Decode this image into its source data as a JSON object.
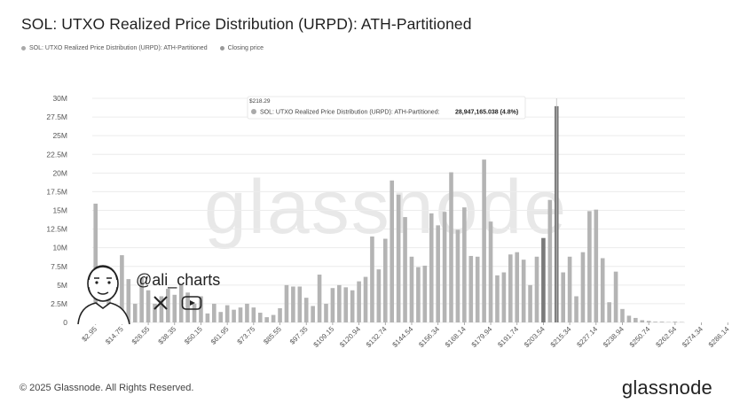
{
  "header": {
    "title": "SOL: UTXO Realized Price Distribution (URPD): ATH-Partitioned"
  },
  "legend": [
    {
      "label": "SOL: UTXO Realized Price Distribution (URPD): ATH-Partitioned",
      "color": "#a9a9a9"
    },
    {
      "label": "Closing price",
      "color": "#9a9a9a"
    }
  ],
  "tooltip": {
    "price": "$218.29",
    "text": "SOL: UTXO Realized Price Distribution (URPD): ATH-Partitioned:",
    "value": "28,947,165.038 (4.8%)"
  },
  "watermark": "glassnode",
  "handle": "@ali_charts",
  "footer": {
    "copyright": "© 2025 Glassnode. All Rights Reserved.",
    "logo": "glassnode"
  },
  "colors": {
    "bar": "#b4b4b4",
    "bar_highlight": "#7a7a7a",
    "grid": "#ececec"
  },
  "chart_data": {
    "type": "bar",
    "title": "SOL: UTXO Realized Price Distribution (URPD): ATH-Partitioned",
    "ylim": [
      0,
      30000000
    ],
    "yticks": [
      0,
      2500000,
      5000000,
      7500000,
      10000000,
      12500000,
      15000000,
      17500000,
      20000000,
      22500000,
      25000000,
      27500000,
      30000000
    ],
    "ytick_labels": [
      "0",
      "2.5M",
      "5M",
      "7.5M",
      "10M",
      "12.5M",
      "15M",
      "17.5M",
      "20M",
      "22.5M",
      "25M",
      "27.5M",
      "30M"
    ],
    "xtick_labels": [
      "$2.95",
      "$14.75",
      "$26.55",
      "$38.35",
      "$50.15",
      "$61.95",
      "$73.75",
      "$85.55",
      "$97.35",
      "$109.15",
      "$120.94",
      "$132.74",
      "$144.54",
      "$156.34",
      "$168.14",
      "$179.94",
      "$191.74",
      "$203.54",
      "$215.34",
      "$227.14",
      "$238.94",
      "$250.74",
      "$262.54",
      "$274.34",
      "$286.14"
    ],
    "bin_start": 2.95,
    "bin_width": 2.95,
    "values": [
      15900000,
      2000000,
      3300000,
      1600000,
      9000000,
      5800000,
      2500000,
      6000000,
      4300000,
      2500000,
      3500000,
      4500000,
      3700000,
      5000000,
      4000000,
      2500000,
      3500000,
      1200000,
      2500000,
      1400000,
      2300000,
      1700000,
      2000000,
      2500000,
      2000000,
      1300000,
      700000,
      1000000,
      1900000,
      5000000,
      4800000,
      4800000,
      3300000,
      2200000,
      6400000,
      2500000,
      4600000,
      5000000,
      4700000,
      4300000,
      5500000,
      6100000,
      11500000,
      7100000,
      11200000,
      19000000,
      17100000,
      14100000,
      8800000,
      7400000,
      7600000,
      14600000,
      13000000,
      14800000,
      20100000,
      12400000,
      15400000,
      8900000,
      8800000,
      21800000,
      13500000,
      6300000,
      6700000,
      9100000,
      9400000,
      8400000,
      5000000,
      8800000,
      11300000,
      16400000,
      28947165,
      6700000,
      8800000,
      3500000,
      9400000,
      14900000,
      15100000,
      8600000,
      2700000,
      6800000,
      1800000,
      900000,
      600000,
      300000,
      200000,
      100000,
      100000,
      50000,
      100000,
      50000
    ],
    "highlight_indices": [
      68,
      70
    ]
  }
}
